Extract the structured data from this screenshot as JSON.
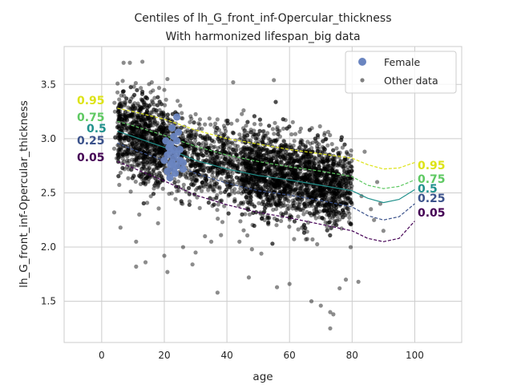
{
  "chart_data": {
    "type": "scatter",
    "title": "Centiles of lh_G_front_inf-Opercular_thickness",
    "subtitle": "With harmonized lifespan_big data",
    "xlabel": "age",
    "ylabel": "lh_G_front_inf-Opercular_thickness",
    "xlim": [
      -12,
      115
    ],
    "ylim": [
      1.12,
      3.85
    ],
    "xticks": [
      0,
      20,
      40,
      60,
      80,
      100
    ],
    "yticks": [
      1.5,
      2.0,
      2.5,
      3.0,
      3.5
    ],
    "grid": true,
    "legend_placement": "top-right",
    "legend": [
      {
        "label": "Female",
        "color": "#6a85c0",
        "marker": "large-circle"
      },
      {
        "label": "Other data",
        "color": "#808080",
        "marker": "small-circle"
      }
    ],
    "centiles": [
      {
        "label": "0.95",
        "color": "#dde318",
        "dashed": true,
        "points": [
          [
            5,
            3.28
          ],
          [
            10,
            3.25
          ],
          [
            20,
            3.18
          ],
          [
            30,
            3.08
          ],
          [
            40,
            3.0
          ],
          [
            50,
            2.95
          ],
          [
            60,
            2.9
          ],
          [
            70,
            2.86
          ],
          [
            80,
            2.82
          ],
          [
            85,
            2.76
          ],
          [
            90,
            2.72
          ],
          [
            95,
            2.73
          ],
          [
            100,
            2.78
          ]
        ]
      },
      {
        "label": "0.75",
        "color": "#5ec962",
        "dashed": true,
        "points": [
          [
            5,
            3.16
          ],
          [
            10,
            3.12
          ],
          [
            20,
            3.03
          ],
          [
            30,
            2.93
          ],
          [
            40,
            2.85
          ],
          [
            50,
            2.79
          ],
          [
            60,
            2.74
          ],
          [
            70,
            2.7
          ],
          [
            80,
            2.65
          ],
          [
            85,
            2.57
          ],
          [
            90,
            2.54
          ],
          [
            95,
            2.56
          ],
          [
            100,
            2.62
          ]
        ]
      },
      {
        "label": "0.5",
        "color": "#21918c",
        "dashed": false,
        "points": [
          [
            5,
            3.07
          ],
          [
            10,
            3.02
          ],
          [
            20,
            2.92
          ],
          [
            30,
            2.8
          ],
          [
            40,
            2.72
          ],
          [
            50,
            2.66
          ],
          [
            60,
            2.62
          ],
          [
            70,
            2.57
          ],
          [
            80,
            2.52
          ],
          [
            85,
            2.45
          ],
          [
            90,
            2.41
          ],
          [
            95,
            2.44
          ],
          [
            100,
            2.53
          ]
        ]
      },
      {
        "label": "0.25",
        "color": "#3b528b",
        "dashed": true,
        "points": [
          [
            5,
            2.96
          ],
          [
            10,
            2.9
          ],
          [
            20,
            2.8
          ],
          [
            30,
            2.68
          ],
          [
            40,
            2.59
          ],
          [
            50,
            2.52
          ],
          [
            60,
            2.48
          ],
          [
            70,
            2.43
          ],
          [
            80,
            2.37
          ],
          [
            85,
            2.29
          ],
          [
            90,
            2.25
          ],
          [
            95,
            2.28
          ],
          [
            100,
            2.4
          ]
        ]
      },
      {
        "label": "0.05",
        "color": "#440154",
        "dashed": true,
        "points": [
          [
            5,
            2.79
          ],
          [
            10,
            2.73
          ],
          [
            20,
            2.61
          ],
          [
            30,
            2.48
          ],
          [
            40,
            2.39
          ],
          [
            50,
            2.32
          ],
          [
            60,
            2.27
          ],
          [
            70,
            2.21
          ],
          [
            80,
            2.15
          ],
          [
            85,
            2.08
          ],
          [
            90,
            2.05
          ],
          [
            95,
            2.08
          ],
          [
            100,
            2.24
          ]
        ]
      }
    ],
    "female_points": [
      [
        20,
        2.8
      ],
      [
        21,
        2.85
      ],
      [
        21.5,
        2.92
      ],
      [
        22,
        2.88
      ],
      [
        22,
        2.95
      ],
      [
        22.5,
        2.78
      ],
      [
        23,
        2.9
      ],
      [
        23,
        2.72
      ],
      [
        23.5,
        2.68
      ],
      [
        24,
        2.75
      ],
      [
        24,
        2.98
      ],
      [
        24.5,
        3.06
      ],
      [
        24,
        3.2
      ],
      [
        25,
        2.8
      ],
      [
        26,
        2.72
      ],
      [
        21,
        2.7
      ],
      [
        22,
        2.76
      ],
      [
        23,
        3.02
      ],
      [
        25,
        2.9
      ],
      [
        20.5,
        2.98
      ],
      [
        22.5,
        3.1
      ],
      [
        24,
        2.86
      ],
      [
        23,
        2.82
      ],
      [
        21.8,
        2.64
      ],
      [
        26,
        2.78
      ]
    ],
    "other_data_outliers": [
      [
        7,
        3.7
      ],
      [
        9,
        3.7
      ],
      [
        13,
        3.71
      ],
      [
        16,
        3.52
      ],
      [
        21,
        3.55
      ],
      [
        20,
        3.45
      ],
      [
        42,
        3.52
      ],
      [
        55,
        3.54
      ],
      [
        11,
        1.82
      ],
      [
        14,
        1.86
      ],
      [
        20,
        1.92
      ],
      [
        21,
        1.77
      ],
      [
        29,
        1.84
      ],
      [
        37,
        1.58
      ],
      [
        47,
        1.72
      ],
      [
        56,
        1.63
      ],
      [
        60,
        1.66
      ],
      [
        67,
        1.5
      ],
      [
        70,
        1.46
      ],
      [
        73,
        1.4
      ],
      [
        74,
        1.38
      ],
      [
        73,
        1.25
      ],
      [
        76,
        1.62
      ],
      [
        78,
        1.7
      ],
      [
        82,
        1.68
      ],
      [
        4,
        2.32
      ],
      [
        6,
        2.18
      ],
      [
        11,
        2.05
      ],
      [
        12,
        2.3
      ],
      [
        18,
        2.22
      ],
      [
        26,
        2.0
      ],
      [
        30,
        1.95
      ],
      [
        33,
        2.1
      ],
      [
        35,
        2.05
      ],
      [
        44,
        2.05
      ],
      [
        48,
        1.98
      ],
      [
        51,
        1.94
      ],
      [
        83,
        2.47
      ],
      [
        84,
        2.88
      ],
      [
        86,
        2.35
      ],
      [
        87,
        2.25
      ],
      [
        88,
        2.6
      ],
      [
        89,
        2.4
      ],
      [
        90,
        2.15
      ]
    ]
  },
  "legend_labels": {
    "female": "Female",
    "other": "Other data"
  }
}
